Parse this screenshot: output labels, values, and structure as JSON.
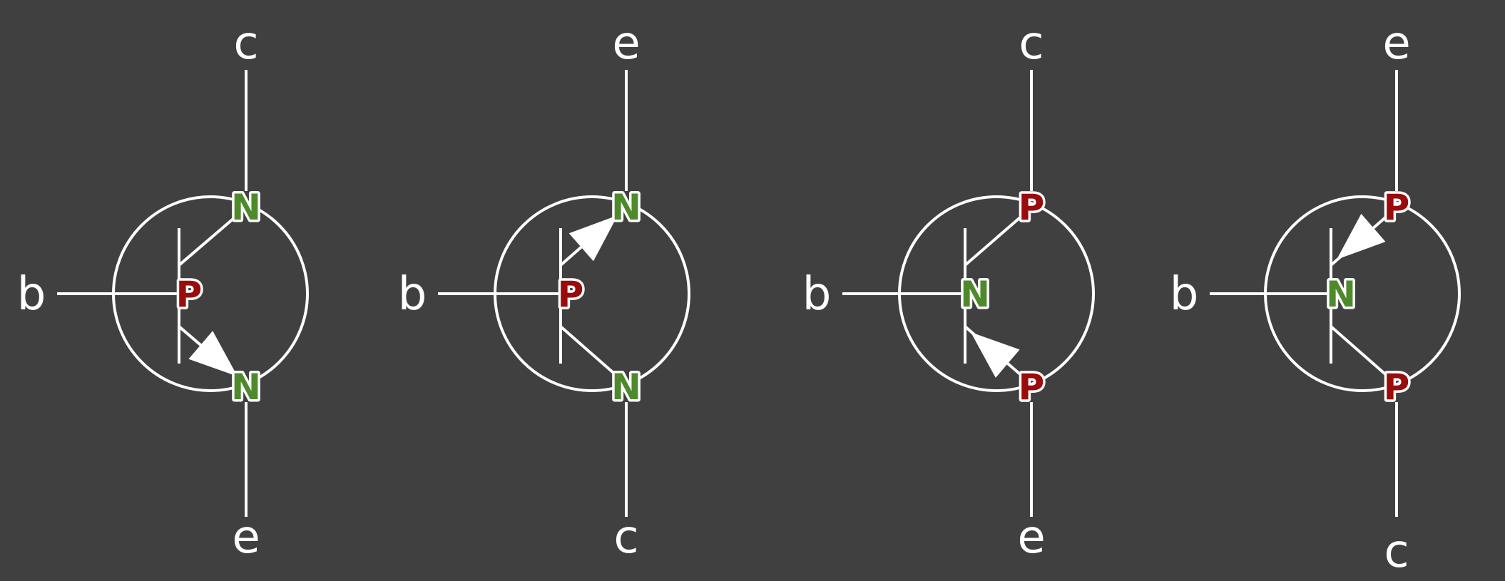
{
  "colors": {
    "background": "#404040",
    "line": "#ffffff",
    "p_region": "#9a0b0b",
    "n_region": "#4e8a2c"
  },
  "transistors": [
    {
      "type": "NPN",
      "top_terminal": "c",
      "bottom_terminal": "e",
      "base_terminal": "b",
      "top_region": "N",
      "base_region": "P",
      "bottom_region": "N",
      "arrow_on": "bottom",
      "arrow_direction": "out"
    },
    {
      "type": "NPN",
      "top_terminal": "e",
      "bottom_terminal": "c",
      "base_terminal": "b",
      "top_region": "N",
      "base_region": "P",
      "bottom_region": "N",
      "arrow_on": "top",
      "arrow_direction": "out"
    },
    {
      "type": "PNP",
      "top_terminal": "c",
      "bottom_terminal": "e",
      "base_terminal": "b",
      "top_region": "P",
      "base_region": "N",
      "bottom_region": "P",
      "arrow_on": "bottom",
      "arrow_direction": "in"
    },
    {
      "type": "PNP",
      "top_terminal": "e",
      "bottom_terminal": "c",
      "base_terminal": "b",
      "top_region": "P",
      "base_region": "N",
      "bottom_region": "P",
      "arrow_on": "top",
      "arrow_direction": "in"
    }
  ]
}
